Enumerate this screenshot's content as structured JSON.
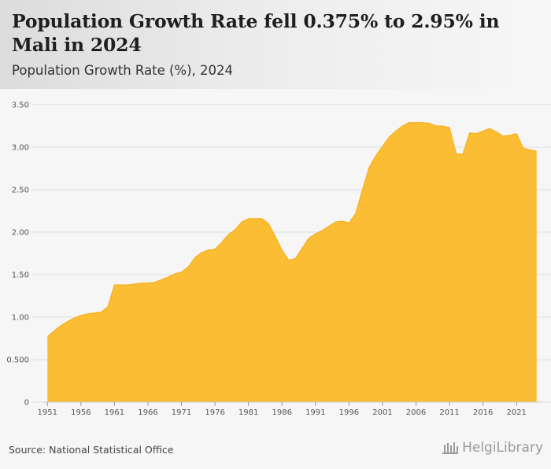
{
  "header": {
    "title": "Population Growth Rate fell 0.375% to 2.95% in Mali in 2024",
    "subtitle": "Population Growth Rate (%), 2024"
  },
  "footer": {
    "source": "Source: National Statistical Office",
    "brand": "HelgiLibrary"
  },
  "colors": {
    "area_fill": "#fbbd34",
    "area_stroke": "#f6ab14",
    "grid": "#dddddd",
    "axis_text": "#555555"
  },
  "chart_data": {
    "type": "area",
    "title": "Population Growth Rate fell 0.375% to 2.95% in Mali in 2024",
    "subtitle": "Population Growth Rate (%), 2024",
    "xlabel": "",
    "ylabel": "",
    "ylim": [
      0,
      3.5
    ],
    "grid": true,
    "legend": "none",
    "y_ticks": [
      0,
      0.5,
      1.0,
      1.5,
      2.0,
      2.5,
      3.0,
      3.5
    ],
    "y_tick_labels": [
      "0",
      "0.500",
      "1.00",
      "1.50",
      "2.00",
      "2.50",
      "3.00",
      "3.50"
    ],
    "x_tick_labels": [
      "1951",
      "1956",
      "1961",
      "1966",
      "1971",
      "1976",
      "1981",
      "1986",
      "1991",
      "1996",
      "2001",
      "2006",
      "2011",
      "2016",
      "2021"
    ],
    "x": [
      1951,
      1952,
      1953,
      1954,
      1955,
      1956,
      1957,
      1958,
      1959,
      1960,
      1961,
      1962,
      1963,
      1964,
      1965,
      1966,
      1967,
      1968,
      1969,
      1970,
      1971,
      1972,
      1973,
      1974,
      1975,
      1976,
      1977,
      1978,
      1979,
      1980,
      1981,
      1982,
      1983,
      1984,
      1985,
      1986,
      1987,
      1988,
      1989,
      1990,
      1991,
      1992,
      1993,
      1994,
      1995,
      1996,
      1997,
      1998,
      1999,
      2000,
      2001,
      2002,
      2003,
      2004,
      2005,
      2006,
      2007,
      2008,
      2009,
      2010,
      2011,
      2012,
      2013,
      2014,
      2015,
      2016,
      2017,
      2018,
      2019,
      2020,
      2021,
      2022,
      2023,
      2024
    ],
    "series": [
      {
        "name": "Population Growth Rate (%)",
        "values": [
          0.77,
          0.84,
          0.9,
          0.95,
          0.99,
          1.02,
          1.04,
          1.05,
          1.06,
          1.12,
          1.38,
          1.38,
          1.38,
          1.39,
          1.4,
          1.4,
          1.41,
          1.44,
          1.47,
          1.51,
          1.53,
          1.59,
          1.7,
          1.76,
          1.79,
          1.8,
          1.88,
          1.97,
          2.03,
          2.12,
          2.16,
          2.16,
          2.16,
          2.1,
          1.95,
          1.79,
          1.67,
          1.69,
          1.81,
          1.93,
          1.98,
          2.02,
          2.07,
          2.12,
          2.13,
          2.11,
          2.22,
          2.5,
          2.76,
          2.9,
          3.01,
          3.12,
          3.19,
          3.25,
          3.29,
          3.29,
          3.29,
          3.28,
          3.25,
          3.25,
          3.23,
          2.92,
          2.92,
          3.17,
          3.16,
          3.19,
          3.22,
          3.18,
          3.13,
          3.14,
          3.16,
          2.99,
          2.97,
          2.95
        ]
      }
    ]
  }
}
